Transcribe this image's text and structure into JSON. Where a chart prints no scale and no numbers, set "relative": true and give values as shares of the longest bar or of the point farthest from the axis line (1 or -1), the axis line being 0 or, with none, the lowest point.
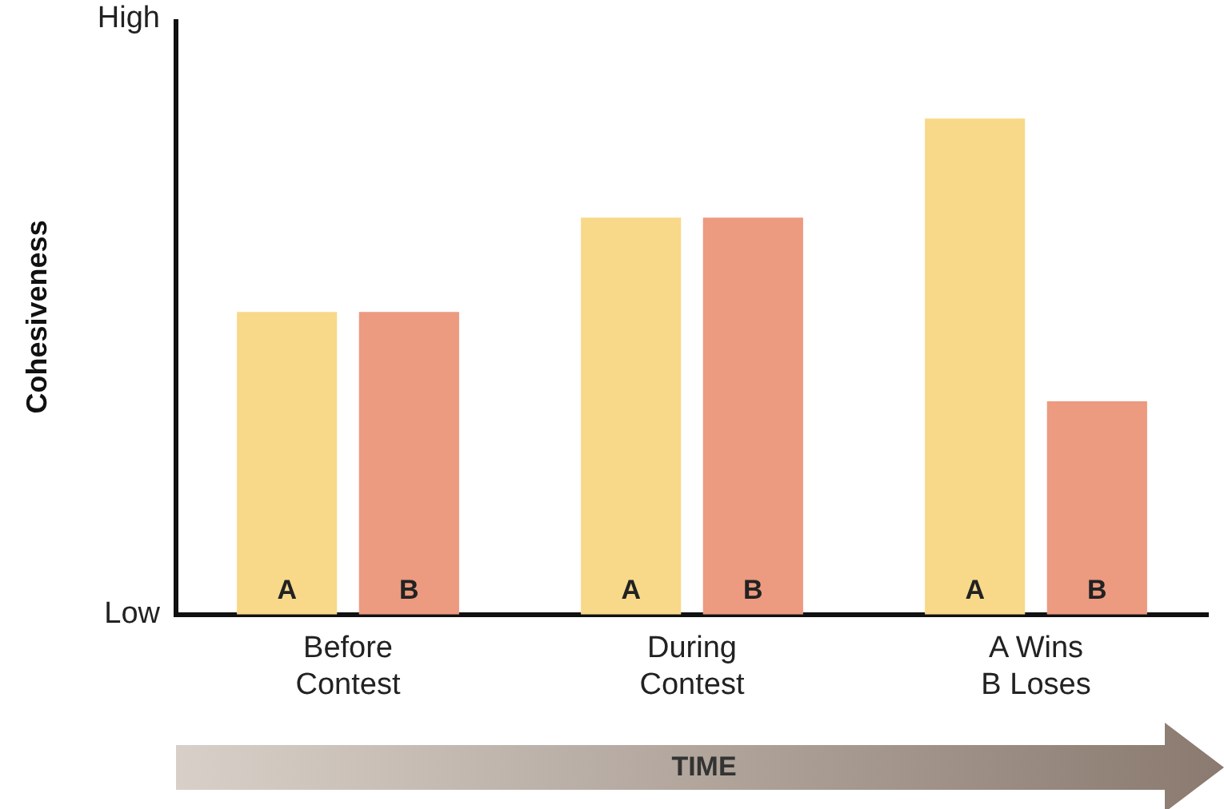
{
  "chart_data": {
    "type": "bar",
    "ylabel": "Cohesiveness",
    "relative": true,
    "categories": [
      "Before\nContest",
      "During\nContest",
      "A Wins\nB Loses"
    ],
    "series": [
      {
        "name": "A",
        "color": "#f8d98a",
        "values": [
          0.61,
          0.8,
          1
        ]
      },
      {
        "name": "B",
        "color": "#ec9a80",
        "values": [
          0.61,
          0.8,
          0.43
        ]
      }
    ],
    "grid": false,
    "legend": false,
    "annotations": [
      "High",
      "Low",
      "TIME"
    ]
  }
}
